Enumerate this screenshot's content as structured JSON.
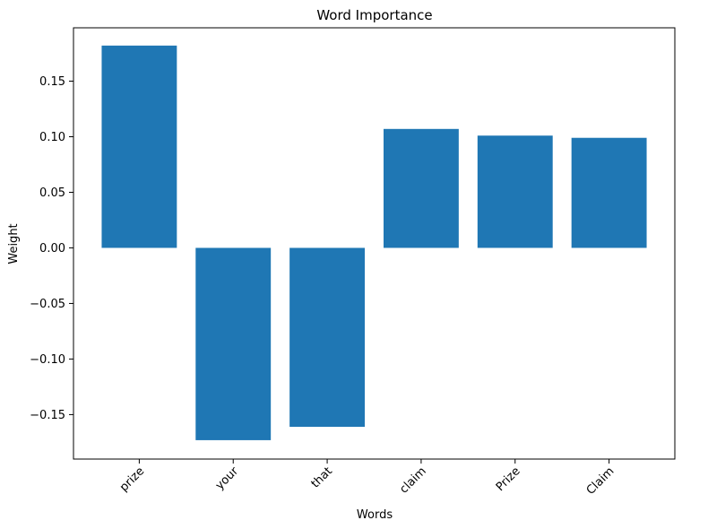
{
  "chart_data": {
    "type": "bar",
    "title": "Word Importance",
    "xlabel": "Words",
    "ylabel": "Weight",
    "categories": [
      "prize",
      "your",
      "that",
      "claim",
      "Prize",
      "Claim"
    ],
    "values": [
      0.182,
      -0.173,
      -0.161,
      0.107,
      0.101,
      0.099
    ],
    "ylim": [
      -0.19,
      0.198
    ],
    "yticks": [
      0.15,
      0.1,
      0.05,
      0.0,
      -0.05,
      -0.1,
      -0.15
    ],
    "ytick_labels": [
      "0.15",
      "0.10",
      "0.05",
      "0.00",
      "−0.05",
      "−0.10",
      "−0.15"
    ],
    "bar_color": "#1f77b4",
    "grid": false,
    "legend": "none"
  }
}
